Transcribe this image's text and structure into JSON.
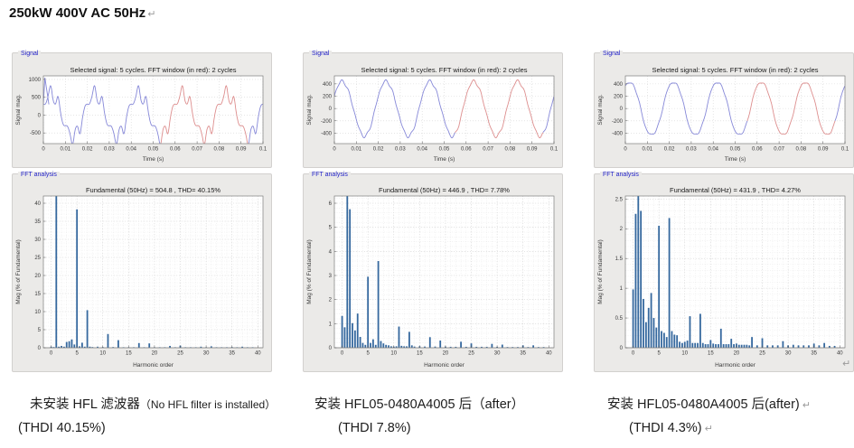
{
  "document": {
    "heading": "250kW 400V AC 50Hz",
    "heading_return_mark": "↵",
    "figure_end_return_mark": "↵"
  },
  "colors": {
    "panel_background": "#ebeae8",
    "panel_label_blue": "#2222c8",
    "signal_line_blue": "#8688d8",
    "fft_window_red": "#dd8e8e",
    "fft_bar_blue": "#35689e"
  },
  "captions": [
    {
      "main": "未安装 HFL 滤波器",
      "sub": "（No HFL filter is installed）",
      "line1_mark": "",
      "line2": "(THDI 40.15%)",
      "line2_mark": ""
    },
    {
      "main": "安装 HFL05-0480A4005 后",
      "sub": "（after）",
      "line1_mark": "",
      "line2": "(THDI 7.8%)",
      "line2_mark": ""
    },
    {
      "main": "安装 HFL05-0480A4005 后(after)",
      "sub": "",
      "line1_mark": "↵",
      "line2": "(THDI 4.3%)",
      "line2_mark": "↵"
    }
  ],
  "chart_data": [
    {
      "id": "signal-no-filter",
      "type": "line",
      "panel_label": "Signal",
      "title": "Selected signal: 5 cycles. FFT window (in red): 2 cycles",
      "xlabel": "Time (s)",
      "ylabel": "Signal mag.",
      "xlim": [
        0,
        0.1
      ],
      "ylim": [
        -800,
        1100
      ],
      "xticks": [
        0,
        0.01,
        0.02,
        0.03,
        0.04,
        0.05,
        0.06,
        0.07,
        0.08,
        0.09,
        0.1
      ],
      "yticks": [
        -500,
        0,
        500,
        1000
      ],
      "grid": "dotted",
      "line_color": "#8688d8",
      "window_color": "#dd8e8e",
      "window_t": [
        0.0535,
        0.0935
      ],
      "harmonics": [
        [
          1,
          600,
          30
        ],
        [
          5,
          170,
          180
        ],
        [
          7,
          55,
          0
        ],
        [
          11,
          20,
          180
        ],
        [
          13,
          11,
          0
        ]
      ],
      "spike": [
        [
          0,
          310
        ],
        [
          0.0007,
          1050
        ],
        [
          0.0025,
          300
        ]
      ]
    },
    {
      "id": "fft-no-filter",
      "type": "bar",
      "panel_label": "FFT analysis",
      "title": "Fundamental (50Hz) = 504.8 , THD= 40.15%",
      "xlabel": "Harmonic order",
      "ylabel": "Mag (% of Fundamental)",
      "xlim": [
        -1.5,
        41
      ],
      "ylim": [
        0,
        42
      ],
      "xticks": [
        0,
        5,
        10,
        15,
        20,
        25,
        30,
        35,
        40
      ],
      "yticks": [
        0,
        5,
        10,
        15,
        20,
        25,
        30,
        35,
        40
      ],
      "grid": "dotted",
      "grid_minor": [
        1,
        1
      ],
      "bar_color": "#35689e",
      "bars": [
        [
          0,
          0.3
        ],
        [
          0.5,
          0.2
        ],
        [
          1,
          100
        ],
        [
          1.5,
          0.3
        ],
        [
          2,
          0.5
        ],
        [
          2.5,
          0.3
        ],
        [
          3,
          1.6
        ],
        [
          3.5,
          1.8
        ],
        [
          4,
          2.3
        ],
        [
          4.5,
          0.9
        ],
        [
          5,
          38.3
        ],
        [
          5.5,
          0.4
        ],
        [
          6,
          1.4
        ],
        [
          6.5,
          0.3
        ],
        [
          7,
          10.4
        ],
        [
          7.5,
          0.3
        ],
        [
          8,
          0.2
        ],
        [
          9,
          0.3
        ],
        [
          10,
          0.2
        ],
        [
          11,
          3.8
        ],
        [
          12,
          0.2
        ],
        [
          13,
          2.1
        ],
        [
          14,
          0.15
        ],
        [
          15,
          0.15
        ],
        [
          16,
          0.15
        ],
        [
          17,
          1.3
        ],
        [
          18,
          0.15
        ],
        [
          19,
          1.2
        ],
        [
          20,
          0.1
        ],
        [
          21,
          0.1
        ],
        [
          22,
          0.1
        ],
        [
          23,
          0.5
        ],
        [
          24,
          0.1
        ],
        [
          25,
          0.6
        ],
        [
          26,
          0.1
        ],
        [
          27,
          0.1
        ],
        [
          28,
          0.1
        ],
        [
          29,
          0.3
        ],
        [
          30,
          0.1
        ],
        [
          31,
          0.4
        ],
        [
          32,
          0.08
        ],
        [
          33,
          0.08
        ],
        [
          34,
          0.08
        ],
        [
          35,
          0.2
        ],
        [
          36,
          0.08
        ],
        [
          37,
          0.3
        ],
        [
          38,
          0.05
        ],
        [
          39,
          0.05
        ]
      ]
    },
    {
      "id": "signal-after-7p8",
      "type": "line",
      "panel_label": "Signal",
      "title": "Selected signal: 5 cycles. FFT window (in red): 2 cycles",
      "xlabel": "Time (s)",
      "ylabel": "Signal mag.",
      "xlim": [
        0,
        0.1
      ],
      "ylim": [
        -570,
        530
      ],
      "xticks": [
        0,
        0.01,
        0.02,
        0.03,
        0.04,
        0.05,
        0.06,
        0.07,
        0.08,
        0.09,
        0.1
      ],
      "yticks": [
        -400,
        -200,
        0,
        200,
        400
      ],
      "grid": "dotted",
      "line_color": "#8688d8",
      "window_color": "#dd8e8e",
      "window_t": [
        0.055,
        0.095
      ],
      "harmonics": [
        [
          1,
          448,
          25
        ],
        [
          2,
          10,
          80
        ],
        [
          5,
          12,
          180
        ],
        [
          7,
          15,
          0
        ]
      ]
    },
    {
      "id": "fft-after-7p8",
      "type": "bar",
      "panel_label": "FFT analysis",
      "title": "Fundamental (50Hz) = 446.9 , THD= 7.78%",
      "xlabel": "Harmonic order",
      "ylabel": "Mag (% of Fundamental)",
      "xlim": [
        -1.5,
        41
      ],
      "ylim": [
        0,
        6.3
      ],
      "xticks": [
        0,
        5,
        10,
        15,
        20,
        25,
        30,
        35,
        40
      ],
      "yticks": [
        0,
        1,
        2,
        3,
        4,
        5,
        6
      ],
      "grid": "dotted",
      "grid_minor": [
        1,
        0.2
      ],
      "bar_color": "#35689e",
      "bars": [
        [
          0,
          1.32
        ],
        [
          0.5,
          0.85
        ],
        [
          1,
          100
        ],
        [
          1.5,
          5.75
        ],
        [
          2,
          1.02
        ],
        [
          2.5,
          0.72
        ],
        [
          3,
          1.42
        ],
        [
          3.5,
          0.45
        ],
        [
          4,
          0.2
        ],
        [
          4.5,
          0.12
        ],
        [
          5,
          2.95
        ],
        [
          5.5,
          0.2
        ],
        [
          6,
          0.35
        ],
        [
          6.5,
          0.12
        ],
        [
          7,
          3.6
        ],
        [
          7.5,
          0.28
        ],
        [
          8,
          0.18
        ],
        [
          8.5,
          0.12
        ],
        [
          9,
          0.1
        ],
        [
          9.5,
          0.06
        ],
        [
          10,
          0.05
        ],
        [
          10.5,
          0.06
        ],
        [
          11,
          0.88
        ],
        [
          11.5,
          0.08
        ],
        [
          12,
          0.06
        ],
        [
          12.5,
          0.06
        ],
        [
          13,
          0.66
        ],
        [
          13.5,
          0.1
        ],
        [
          14,
          0.05
        ],
        [
          15,
          0.06
        ],
        [
          16,
          0.05
        ],
        [
          17,
          0.44
        ],
        [
          18,
          0.05
        ],
        [
          19,
          0.3
        ],
        [
          20,
          0.05
        ],
        [
          21,
          0.04
        ],
        [
          22,
          0.04
        ],
        [
          23,
          0.25
        ],
        [
          24,
          0.04
        ],
        [
          25,
          0.18
        ],
        [
          26,
          0.04
        ],
        [
          27,
          0.04
        ],
        [
          28,
          0.04
        ],
        [
          29,
          0.16
        ],
        [
          30,
          0.04
        ],
        [
          31,
          0.13
        ],
        [
          32,
          0.03
        ],
        [
          33,
          0.03
        ],
        [
          34,
          0.03
        ],
        [
          35,
          0.1
        ],
        [
          36,
          0.03
        ],
        [
          37,
          0.1
        ],
        [
          38,
          0.03
        ],
        [
          39,
          0.03
        ]
      ]
    },
    {
      "id": "signal-after-4p3",
      "type": "line",
      "panel_label": "Signal",
      "title": "Selected signal: 5 cycles. FFT window (in red): 2 cycles",
      "xlabel": "Time (s)",
      "ylabel": "Signal mag.",
      "xlim": [
        0,
        0.1
      ],
      "ylim": [
        -570,
        530
      ],
      "xticks": [
        0,
        0.01,
        0.02,
        0.03,
        0.04,
        0.05,
        0.06,
        0.07,
        0.08,
        0.09,
        0.1
      ],
      "yticks": [
        -400,
        -200,
        0,
        200,
        400
      ],
      "grid": "dotted",
      "line_color": "#8688d8",
      "window_color": "#dd8e8e",
      "window_t": [
        0.0555,
        0.0955
      ],
      "harmonics": [
        [
          1,
          438,
          55
        ],
        [
          3,
          18,
          150
        ],
        [
          5,
          8,
          180
        ],
        [
          7,
          8,
          0
        ]
      ]
    },
    {
      "id": "fft-after-4p3",
      "type": "bar",
      "panel_label": "FFT analysis",
      "title": "Fundamental (50Hz) = 431.9 , THD= 4.27%",
      "xlabel": "Harmonic order",
      "ylabel": "Mag (% of Fundamental)",
      "xlim": [
        -1.5,
        41
      ],
      "ylim": [
        0,
        2.55
      ],
      "xticks": [
        0,
        5,
        10,
        15,
        20,
        25,
        30,
        35,
        40
      ],
      "yticks": [
        0,
        0.5,
        1,
        1.5,
        2,
        2.5
      ],
      "grid": "dotted",
      "grid_minor": [
        1,
        0.1
      ],
      "bar_color": "#35689e",
      "bars": [
        [
          0,
          0.98
        ],
        [
          0.5,
          2.25
        ],
        [
          1,
          100
        ],
        [
          1.5,
          2.3
        ],
        [
          2,
          0.82
        ],
        [
          2.5,
          0.43
        ],
        [
          3,
          0.67
        ],
        [
          3.5,
          0.92
        ],
        [
          4,
          0.5
        ],
        [
          4.5,
          0.34
        ],
        [
          5,
          2.05
        ],
        [
          5.5,
          0.28
        ],
        [
          6,
          0.25
        ],
        [
          6.5,
          0.18
        ],
        [
          7,
          2.18
        ],
        [
          7.5,
          0.28
        ],
        [
          8,
          0.22
        ],
        [
          8.5,
          0.21
        ],
        [
          9,
          0.1
        ],
        [
          9.5,
          0.08
        ],
        [
          10,
          0.1
        ],
        [
          10.5,
          0.12
        ],
        [
          11,
          0.53
        ],
        [
          11.5,
          0.08
        ],
        [
          12,
          0.08
        ],
        [
          12.5,
          0.08
        ],
        [
          13,
          0.57
        ],
        [
          13.5,
          0.08
        ],
        [
          14,
          0.06
        ],
        [
          14.5,
          0.06
        ],
        [
          15,
          0.13
        ],
        [
          15.5,
          0.07
        ],
        [
          16,
          0.06
        ],
        [
          16.5,
          0.06
        ],
        [
          17,
          0.32
        ],
        [
          17.5,
          0.06
        ],
        [
          18,
          0.06
        ],
        [
          18.5,
          0.06
        ],
        [
          19,
          0.15
        ],
        [
          19.5,
          0.06
        ],
        [
          20,
          0.07
        ],
        [
          20.5,
          0.05
        ],
        [
          21,
          0.05
        ],
        [
          21.5,
          0.05
        ],
        [
          22,
          0.05
        ],
        [
          22.5,
          0.04
        ],
        [
          23,
          0.18
        ],
        [
          24,
          0.04
        ],
        [
          25,
          0.16
        ],
        [
          26,
          0.04
        ],
        [
          27,
          0.04
        ],
        [
          28,
          0.04
        ],
        [
          29,
          0.11
        ],
        [
          30,
          0.04
        ],
        [
          31,
          0.05
        ],
        [
          32,
          0.04
        ],
        [
          33,
          0.04
        ],
        [
          34,
          0.04
        ],
        [
          35,
          0.07
        ],
        [
          36,
          0.04
        ],
        [
          37,
          0.08
        ],
        [
          38,
          0.03
        ],
        [
          39,
          0.03
        ]
      ]
    }
  ]
}
